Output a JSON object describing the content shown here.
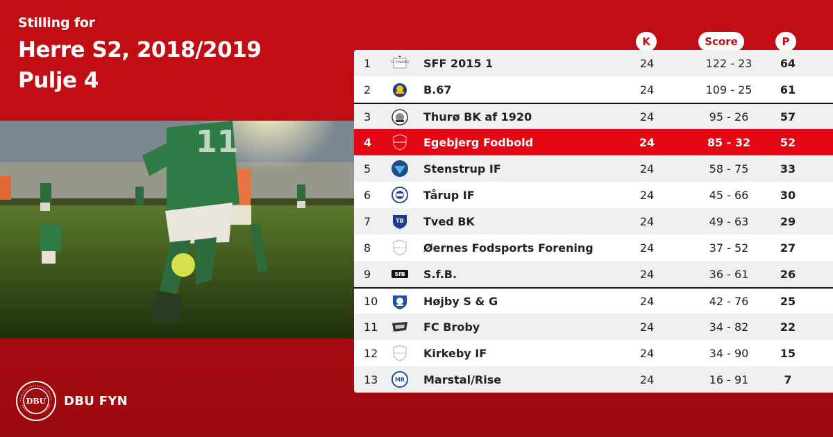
{
  "header": {
    "subtitle": "Stilling for",
    "title_line1": "Herre S2, 2018/2019",
    "title_line2": "Pulje 4"
  },
  "columns": {
    "k": "K",
    "score": "Score",
    "p": "P"
  },
  "rows": [
    {
      "pos": "1",
      "team": "SFF 2015 1",
      "k": "24",
      "score": "122 - 23",
      "p": "64",
      "crest": "fc-faaborg-crest-icon"
    },
    {
      "pos": "2",
      "team": "B.67",
      "k": "24",
      "score": "109 - 25",
      "p": "61",
      "crest": "b67-crest-icon"
    },
    {
      "pos": "3",
      "team": "Thurø BK af 1920",
      "k": "24",
      "score": "95 - 26",
      "p": "57",
      "crest": "thuro-crest-icon"
    },
    {
      "pos": "4",
      "team": "Egebjerg Fodbold",
      "k": "24",
      "score": "85 - 32",
      "p": "52",
      "crest": "generic-shield-icon"
    },
    {
      "pos": "5",
      "team": "Stenstrup IF",
      "k": "24",
      "score": "58 - 75",
      "p": "33",
      "crest": "stenstrup-crest-icon"
    },
    {
      "pos": "6",
      "team": "Tårup IF",
      "k": "24",
      "score": "45 - 66",
      "p": "30",
      "crest": "tarup-crest-icon"
    },
    {
      "pos": "7",
      "team": "Tved BK",
      "k": "24",
      "score": "49 - 63",
      "p": "29",
      "crest": "tved-crest-icon"
    },
    {
      "pos": "8",
      "team": "Øernes Fodsports Forening",
      "k": "24",
      "score": "37 - 52",
      "p": "27",
      "crest": "generic-shield-icon"
    },
    {
      "pos": "9",
      "team": "S.f.B.",
      "k": "24",
      "score": "36 - 61",
      "p": "26",
      "crest": "sfb-crest-icon"
    },
    {
      "pos": "10",
      "team": "Højby S & G",
      "k": "24",
      "score": "42 - 76",
      "p": "25",
      "crest": "hojby-crest-icon"
    },
    {
      "pos": "11",
      "team": "FC Broby",
      "k": "24",
      "score": "34 - 82",
      "p": "22",
      "crest": "fc-broby-crest-icon"
    },
    {
      "pos": "12",
      "team": "Kirkeby IF",
      "k": "24",
      "score": "34 - 90",
      "p": "15",
      "crest": "generic-shield-icon"
    },
    {
      "pos": "13",
      "team": "Marstal/Rise",
      "k": "24",
      "score": "16 - 91",
      "p": "7",
      "crest": "marstal-crest-icon"
    }
  ],
  "footer": {
    "brand": "DBU FYN",
    "seal_icon": "dbu-seal-icon",
    "seal_lettering": "DANSK BOLDSPIL-UNION 1889"
  },
  "colors": {
    "background": "#c00e14",
    "highlight_row": "#e40612",
    "alt_row": "#f0f0f0"
  }
}
